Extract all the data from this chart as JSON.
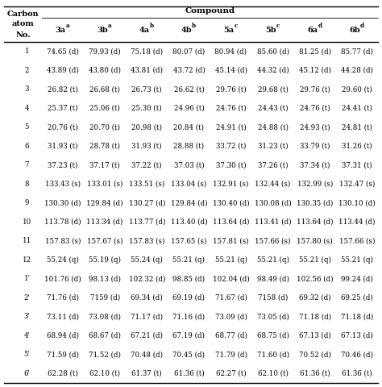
{
  "title": "Compound",
  "row_labels": [
    "1",
    "2",
    "3",
    "4",
    "5",
    "6",
    "7",
    "8",
    "9",
    "10",
    "11",
    "12",
    "1'",
    "2'",
    "3'",
    "4'",
    "5'",
    "6'"
  ],
  "main_labels": [
    "3a",
    "3b",
    "4a",
    "4b",
    "5a",
    "5b",
    "6a",
    "6b"
  ],
  "superscripts": [
    "a",
    "a",
    "b",
    "b",
    "c",
    "c",
    "d",
    "d"
  ],
  "data": [
    [
      "74.65 (d)",
      "79.93 (d)",
      "75.18 (d)",
      "80.07 (d)",
      "80.94 (d)",
      "85.60 (d)",
      "81.25 (d)",
      "85.77 (d)"
    ],
    [
      "43.89 (d)",
      "43.80 (d)",
      "43.81 (d)",
      "43.72 (d)",
      "45.14 (d)",
      "44.32 (d)",
      "45.12 (d)",
      "44.28 (d)"
    ],
    [
      "26.82 (t)",
      "26.68 (t)",
      "26.73 (t)",
      "26.62 (t)",
      "29.76 (t)",
      "29.68 (t)",
      "29.76 (t)",
      "29.60 (t)"
    ],
    [
      "25.37 (t)",
      "25.06 (t)",
      "25.30 (t)",
      "24.96 (t)",
      "24.76 (t)",
      "24.43 (t)",
      "24.76 (t)",
      "24.41 (t)"
    ],
    [
      "20.76 (t)",
      "20.70 (t)",
      "20.98 (t)",
      "20.84 (t)",
      "24.91 (t)",
      "24.88 (t)",
      "24.93 (t)",
      "24.81 (t)"
    ],
    [
      "31.93 (t)",
      "28.78 (t)",
      "31.93 (t)",
      "28.88 (t)",
      "33.72 (t)",
      "31.23 (t)",
      "33.79 (t)",
      "31.26 (t)"
    ],
    [
      "37.23 (t)",
      "37.17 (t)",
      "37.22 (t)",
      "37.03 (t)",
      "37.30 (t)",
      "37.26 (t)",
      "37.34 (t)",
      "37.31 (t)"
    ],
    [
      "133.43 (s)",
      "133.01 (s)",
      "133.51 (s)",
      "133.04 (s)",
      "132.91 (s)",
      "132.44 (s)",
      "132.99 (s)",
      "132.47 (s)"
    ],
    [
      "130.30 (d)",
      "129.84 (d)",
      "130.27 (d)",
      "129.84 (d)",
      "130.40 (d)",
      "130.08 (d)",
      "130.35 (d)",
      "130.10 (d)"
    ],
    [
      "113.78 (d)",
      "113.34 (d)",
      "113.77 (d)",
      "113.40 (d)",
      "113.64 (d)",
      "113.41 (d)",
      "113.64 (d)",
      "113.44 (d)"
    ],
    [
      "157.83 (s)",
      "157.67 (s)",
      "157.83 (s)",
      "157.65 (s)",
      "157.81 (s)",
      "157.66 (s)",
      "157.80 (s)",
      "157.66 (s)"
    ],
    [
      "55.24 (q)",
      "55.19 (q)",
      "55.24 (q)",
      "55.21 (q)",
      "55.21 (q)",
      "55.21 (q)",
      "55.21 (q)",
      "55.21 (q)"
    ],
    [
      "101.76 (d)",
      "98.13 (d)",
      "102.32 (d)",
      "98.85 (d)",
      "102.04 (d)",
      "98.49 (d)",
      "102.56 (d)",
      "99.24 (d)"
    ],
    [
      "71.76 (d)",
      "7159 (d)",
      "69.34 (d)",
      "69.19 (d)",
      "71.67 (d)",
      "7158 (d)",
      "69.32 (d)",
      "69.25 (d)"
    ],
    [
      "73.11 (d)",
      "73.08 (d)",
      "71.17 (d)",
      "71.16 (d)",
      "73.09 (d)",
      "73.05 (d)",
      "71.18 (d)",
      "71.18 (d)"
    ],
    [
      "68.94 (d)",
      "68.67 (d)",
      "67.21 (d)",
      "67.19 (d)",
      "68.77 (d)",
      "68.75 (d)",
      "67.13 (d)",
      "67.13 (d)"
    ],
    [
      "71.59 (d)",
      "71.52 (d)",
      "70.48 (d)",
      "70.45 (d)",
      "71.79 (d)",
      "71.60 (d)",
      "70.52 (d)",
      "70.46 (d)"
    ],
    [
      "62.28 (t)",
      "62.10 (t)",
      "61.37 (t)",
      "61.36 (t)",
      "62.27 (t)",
      "62.10 (t)",
      "61.36 (t)",
      "61.36 (t)"
    ]
  ],
  "bg_color": "#ffffff",
  "text_color": "#000000",
  "data_fontsize": 6.2,
  "header_fontsize": 7.0,
  "title_fontsize": 7.5
}
